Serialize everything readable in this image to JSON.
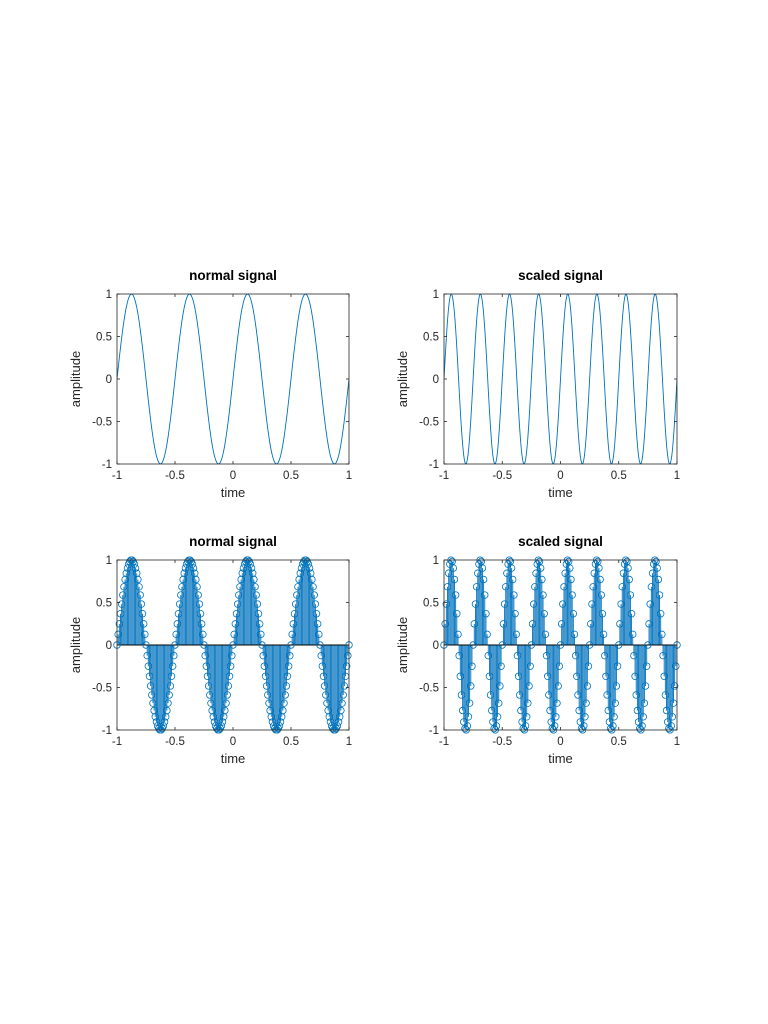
{
  "chart_data": [
    {
      "type": "line",
      "title": "normal signal",
      "xlabel": "time",
      "ylabel": "amplitude",
      "function": "sin(2*pi*f*t)",
      "frequency_hz": 2,
      "sample_step": 0.01,
      "xlim": [
        -1,
        1
      ],
      "ylim": [
        -1,
        1
      ],
      "xticks": [
        "-1",
        "-0.5",
        "0",
        "0.5",
        "1"
      ],
      "yticks": [
        "-1",
        "-0.5",
        "0",
        "0.5",
        "1"
      ],
      "color": "#0072BD",
      "grid": false
    },
    {
      "type": "line",
      "title": "scaled signal",
      "xlabel": "time",
      "ylabel": "amplitude",
      "function": "sin(2*pi*f*t)",
      "frequency_hz": 4,
      "sample_step": 0.005,
      "xlim": [
        -1,
        1
      ],
      "ylim": [
        -1,
        1
      ],
      "xticks": [
        "-1",
        "-0.5",
        "0",
        "0.5",
        "1"
      ],
      "yticks": [
        "-1",
        "-0.5",
        "0",
        "0.5",
        "1"
      ],
      "color": "#0072BD",
      "grid": false
    },
    {
      "type": "stem",
      "title": "normal signal",
      "xlabel": "time",
      "ylabel": "amplitude",
      "function": "sin(2*pi*f*t)",
      "frequency_hz": 2,
      "sample_step": 0.01,
      "xlim": [
        -1,
        1
      ],
      "ylim": [
        -1,
        1
      ],
      "xticks": [
        "-1",
        "-0.5",
        "0",
        "0.5",
        "1"
      ],
      "yticks": [
        "-1",
        "-0.5",
        "0",
        "0.5",
        "1"
      ],
      "color": "#0072BD",
      "grid": false
    },
    {
      "type": "stem",
      "title": "scaled signal",
      "xlabel": "time",
      "ylabel": "amplitude",
      "function": "sin(2*pi*f*t)",
      "frequency_hz": 4,
      "sample_step": 0.01,
      "xlim": [
        -1,
        1
      ],
      "ylim": [
        -1,
        1
      ],
      "xticks": [
        "-1",
        "-0.5",
        "0",
        "0.5",
        "1"
      ],
      "yticks": [
        "-1",
        "-0.5",
        "0",
        "0.5",
        "1"
      ],
      "color": "#0072BD",
      "grid": false
    }
  ]
}
